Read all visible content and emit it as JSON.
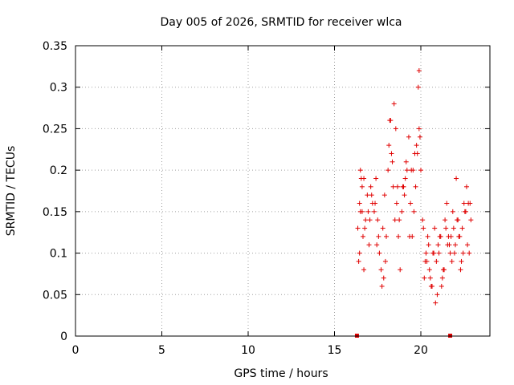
{
  "chart_data": {
    "type": "scatter",
    "title": "Day 005 of 2026, SRMTID for receiver wlca",
    "xlabel": "GPS time / hours",
    "ylabel": "SRMTID / TECUs",
    "xlim": [
      0,
      24
    ],
    "ylim": [
      0,
      0.35
    ],
    "grid": true,
    "x_ticks": [
      0,
      5,
      10,
      15,
      20
    ],
    "x_tick_labels": [
      "0",
      "5",
      "10",
      "15",
      "20"
    ],
    "y_ticks": [
      0,
      0.05,
      0.1,
      0.15,
      0.2,
      0.25,
      0.3,
      0.35
    ],
    "y_tick_labels": [
      "0",
      "0.05",
      "0.1",
      "0.15",
      "0.2",
      "0.25",
      "0.3",
      "0.35"
    ],
    "marker": "plus",
    "color": "#e00000",
    "series": [
      {
        "name": "SRMTID",
        "x": [
          16.35,
          16.4,
          16.45,
          16.5,
          16.55,
          16.6,
          16.65,
          16.7,
          16.8,
          16.9,
          17.0,
          17.1,
          17.2,
          17.3,
          17.4,
          17.5,
          17.6,
          17.7,
          17.8,
          17.9,
          18.0,
          18.1,
          18.2,
          18.3,
          18.4,
          18.5,
          18.6,
          18.7,
          18.8,
          18.9,
          19.0,
          19.1,
          19.2,
          19.3,
          19.4,
          19.5,
          19.6,
          19.7,
          19.8,
          19.9,
          20.0,
          20.1,
          20.2,
          20.3,
          20.4,
          20.5,
          20.6,
          20.7,
          20.8,
          20.9,
          21.0,
          21.1,
          21.2,
          21.3,
          21.4,
          21.5,
          21.6,
          21.7,
          21.8,
          21.9,
          22.0,
          22.1,
          22.2,
          22.3,
          22.4,
          22.5,
          22.6,
          22.7,
          22.8,
          22.9,
          16.45,
          16.6,
          16.75,
          16.95,
          17.15,
          17.35,
          17.55,
          17.75,
          17.95,
          18.15,
          18.35,
          18.55,
          18.75,
          18.95,
          19.15,
          19.35,
          19.55,
          19.75,
          19.85,
          19.95,
          20.15,
          20.35,
          20.55,
          20.75,
          20.95,
          21.15,
          21.35,
          21.55,
          21.75,
          21.95,
          22.15,
          22.35,
          22.55,
          22.75,
          16.5,
          16.7,
          17.05,
          17.45,
          17.85,
          18.25,
          18.45,
          18.65,
          19.05,
          19.45,
          19.65,
          19.9,
          20.25,
          20.45,
          20.65,
          20.85,
          21.05,
          21.25,
          21.45,
          21.65,
          21.85,
          22.05,
          22.25,
          22.45,
          22.65,
          22.85
        ],
        "y": [
          0.13,
          0.09,
          0.16,
          0.2,
          0.19,
          0.15,
          0.12,
          0.08,
          0.14,
          0.17,
          0.11,
          0.18,
          0.16,
          0.15,
          0.19,
          0.14,
          0.1,
          0.08,
          0.13,
          0.17,
          0.12,
          0.2,
          0.26,
          0.22,
          0.18,
          0.14,
          0.16,
          0.12,
          0.08,
          0.15,
          0.18,
          0.19,
          0.2,
          0.24,
          0.16,
          0.12,
          0.15,
          0.18,
          0.22,
          0.25,
          0.2,
          0.14,
          0.07,
          0.1,
          0.12,
          0.08,
          0.06,
          0.1,
          0.13,
          0.09,
          0.11,
          0.12,
          0.06,
          0.08,
          0.14,
          0.16,
          0.12,
          0.1,
          0.09,
          0.13,
          0.11,
          0.14,
          0.12,
          0.08,
          0.13,
          0.16,
          0.15,
          0.11,
          0.1,
          0.14,
          0.1,
          0.18,
          0.13,
          0.15,
          0.17,
          0.16,
          0.12,
          0.06,
          0.09,
          0.23,
          0.21,
          0.25,
          0.14,
          0.18,
          0.21,
          0.12,
          0.2,
          0.23,
          0.3,
          0.24,
          0.13,
          0.09,
          0.07,
          0.1,
          0.05,
          0.12,
          0.08,
          0.11,
          0.12,
          0.1,
          0.14,
          0.09,
          0.15,
          0.16,
          0.15,
          0.19,
          0.14,
          0.11,
          0.07,
          0.26,
          0.28,
          0.18,
          0.17,
          0.2,
          0.22,
          0.32,
          0.09,
          0.11,
          0.06,
          0.04,
          0.1,
          0.07,
          0.13,
          0.11,
          0.15,
          0.19,
          0.12,
          0.1,
          0.18,
          0.16
        ]
      }
    ],
    "zero_points": [
      16.3,
      21.7
    ]
  }
}
